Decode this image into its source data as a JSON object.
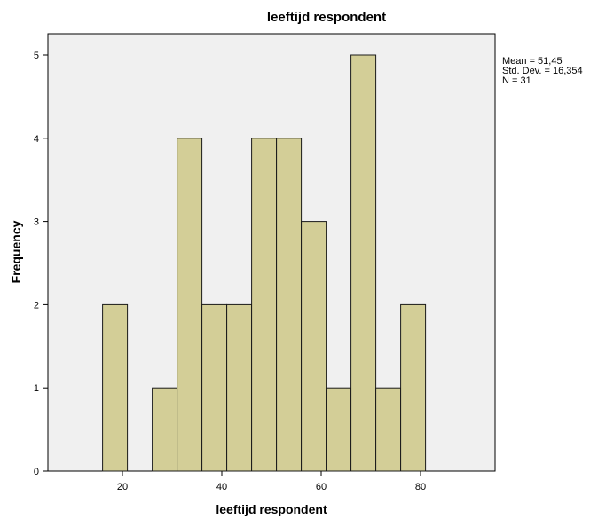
{
  "chart_data": {
    "type": "bar",
    "title": "leeftijd respondent",
    "xlabel": "leeftijd respondent",
    "ylabel": "Frequency",
    "xlim": [
      5,
      95
    ],
    "ylim": [
      0,
      5
    ],
    "grid": false,
    "background_color": "#f0f0f0",
    "bar_color": "#d3ce97",
    "bar_edge_color": "#1a1a1a",
    "bin_width": 5,
    "bins": [
      {
        "start": 16,
        "end": 21,
        "value": 2
      },
      {
        "start": 26,
        "end": 31,
        "value": 1
      },
      {
        "start": 31,
        "end": 36,
        "value": 4
      },
      {
        "start": 36,
        "end": 41,
        "value": 2
      },
      {
        "start": 41,
        "end": 46,
        "value": 2
      },
      {
        "start": 46,
        "end": 51,
        "value": 4
      },
      {
        "start": 51,
        "end": 56,
        "value": 4
      },
      {
        "start": 56,
        "end": 61,
        "value": 3
      },
      {
        "start": 61,
        "end": 66,
        "value": 1
      },
      {
        "start": 66,
        "end": 71,
        "value": 5
      },
      {
        "start": 71,
        "end": 76,
        "value": 1
      },
      {
        "start": 76,
        "end": 81,
        "value": 2
      }
    ],
    "x_ticks": [
      20,
      40,
      60,
      80
    ],
    "y_ticks": [
      0,
      1,
      2,
      3,
      4,
      5
    ],
    "stats": {
      "mean": "Mean = 51,45",
      "std": "Std. Dev. = 16,354",
      "n": "N = 31"
    }
  }
}
